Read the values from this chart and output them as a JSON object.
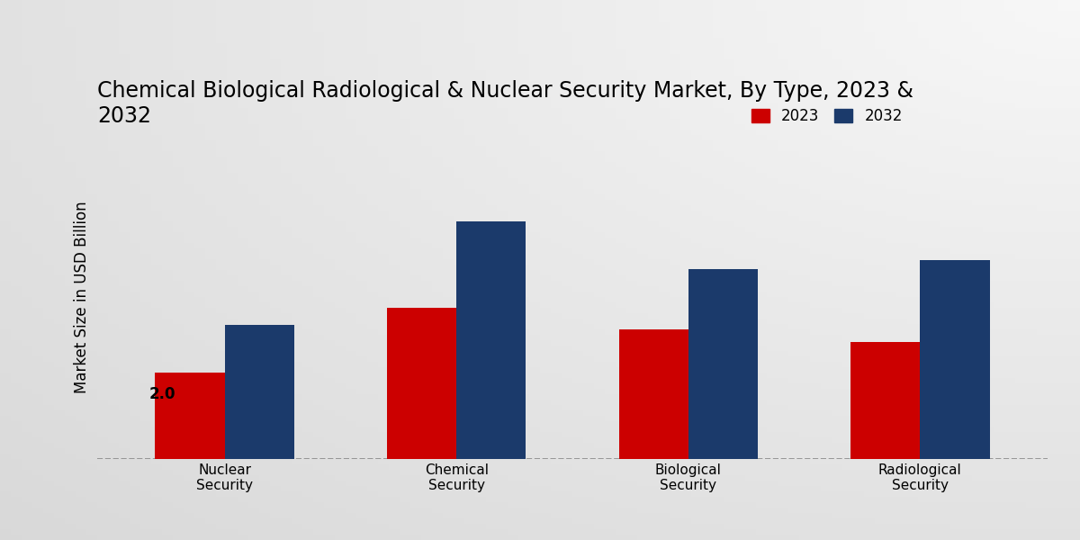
{
  "title": "Chemical Biological Radiological & Nuclear Security Market, By Type, 2023 &\n2032",
  "ylabel": "Market Size in USD Billion",
  "categories": [
    "Nuclear\nSecurity",
    "Chemical\nSecurity",
    "Biological\nSecurity",
    "Radiological\nSecurity"
  ],
  "values_2023": [
    2.0,
    3.5,
    3.0,
    2.7
  ],
  "values_2032": [
    3.1,
    5.5,
    4.4,
    4.6
  ],
  "color_2023": "#cc0000",
  "color_2032": "#1b3a6b",
  "bar_width": 0.3,
  "annotation_label": "2.0",
  "annotation_bar_index": 0,
  "bg_light": "#f5f5f5",
  "bg_dark": "#d0d0d0",
  "title_fontsize": 17,
  "axis_label_fontsize": 12,
  "legend_fontsize": 12,
  "tick_fontsize": 11,
  "ylim": [
    0,
    7.5
  ],
  "legend_labels": [
    "2023",
    "2032"
  ]
}
